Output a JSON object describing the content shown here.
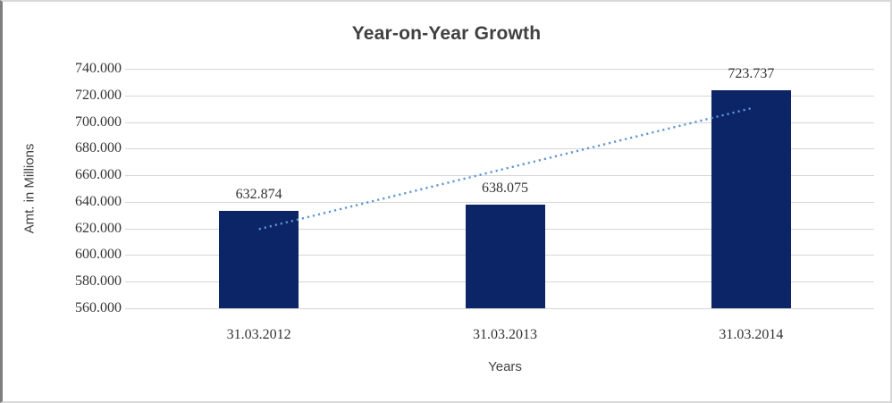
{
  "chart_data": {
    "type": "bar",
    "title": "Year-on-Year Growth",
    "xlabel": "Years",
    "ylabel": "Amt. in Millions",
    "categories": [
      "31.03.2012",
      "31.03.2013",
      "31.03.2014"
    ],
    "values": [
      632.874,
      638.075,
      723.737
    ],
    "data_labels": [
      "632.874",
      "638.075",
      "723.737"
    ],
    "ylim": [
      560,
      740
    ],
    "ytick_step": 20,
    "ytick_labels": [
      "560.000",
      "580.000",
      "600.000",
      "620.000",
      "640.000",
      "660.000",
      "680.000",
      "700.000",
      "720.000",
      "740.000"
    ],
    "grid": "horizontal",
    "legend": "none",
    "trendline": {
      "type": "linear",
      "style": "dotted",
      "start_value": 619.5,
      "end_value": 710.3
    },
    "colors": {
      "bar": "#0c2566",
      "gridline": "#d6d6d6",
      "trendline": "#5e94d0",
      "title_text": "#404040",
      "label_text": "#333333"
    }
  }
}
